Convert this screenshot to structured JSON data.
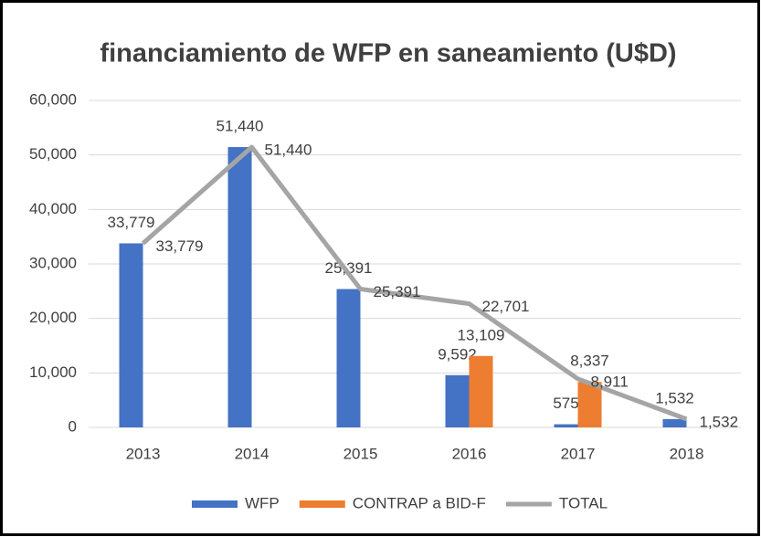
{
  "chart_data": {
    "type": "bar",
    "title": "financiamiento de WFP en saneamiento (U$D)",
    "categories": [
      "2013",
      "2014",
      "2015",
      "2016",
      "2017",
      "2018"
    ],
    "series": [
      {
        "name": "WFP",
        "type": "bar",
        "color": "#4472c4",
        "values": [
          33779,
          51440,
          25391,
          9592,
          575,
          1532
        ],
        "value_labels": [
          "33,779",
          "51,440",
          "25,391",
          "9,592",
          "575",
          "1,532"
        ]
      },
      {
        "name": "CONTRAP a BID-F",
        "type": "bar",
        "color": "#ed7d31",
        "values": [
          null,
          null,
          null,
          13109,
          8337,
          null
        ],
        "value_labels": [
          null,
          null,
          null,
          "13,109",
          "8,337",
          null
        ]
      },
      {
        "name": "TOTAL",
        "type": "line",
        "color": "#a5a5a5",
        "values": [
          33779,
          51440,
          25391,
          22701,
          8911,
          1532
        ],
        "value_labels": [
          "33,779",
          "51,440",
          "25,391",
          "22,701",
          "8,911",
          "1,532"
        ]
      }
    ],
    "ylim": [
      0,
      60000
    ],
    "yticks": [
      0,
      {
        "value": 10000,
        "label": "10,000"
      },
      {
        "value": 20000,
        "label": "20,000"
      },
      {
        "value": 30000,
        "label": "30,000"
      },
      {
        "value": 40000,
        "label": "40,000"
      },
      {
        "value": 50000,
        "label": "50,000"
      },
      {
        "value": 60000,
        "label": "60,000"
      }
    ],
    "grid": true,
    "legend": "bottom"
  }
}
